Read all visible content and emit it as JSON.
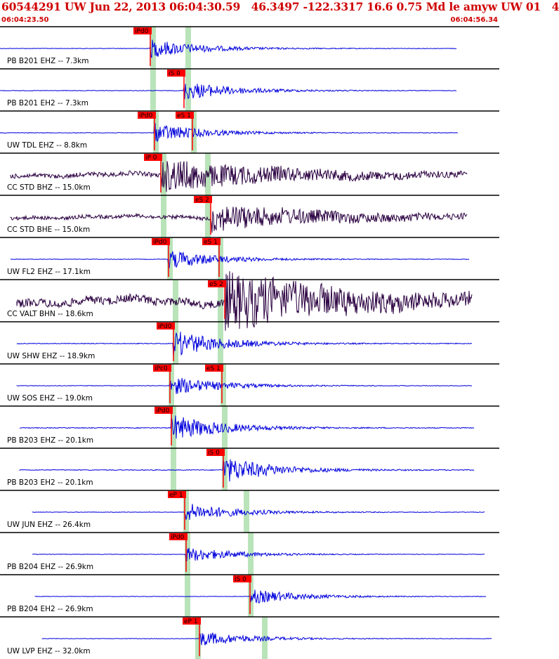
{
  "header": {
    "title": "60544291 UW Jun 22, 2013 06:04:30.59   46.3497 -122.3317 16.6 0.75 Md le amyw UW 01   4",
    "start_time": "06:04:23.50",
    "end_time": "06:04:56.34"
  },
  "colors": {
    "header_text": "#d00000",
    "trace_vertical": "#0000dd",
    "trace_horizontal": "#2a0040",
    "pick_flag": "#ff0000",
    "pick_band": "#b9e3b9",
    "grid": "#000000"
  },
  "traces": [
    {
      "label": "PB B201 EHZ -- 7.3km",
      "picks": [
        {
          "text": "iPd0"
        }
      ]
    },
    {
      "label": "PB B201 EH2 -- 7.3km",
      "picks": [
        {
          "text": "iS 0"
        }
      ]
    },
    {
      "label": "UW TDL EHZ -- 8.8km",
      "picks": [
        {
          "text": "iPd0"
        },
        {
          "text": "eS 1"
        }
      ]
    },
    {
      "label": "CC STD BHZ -- 15.0km",
      "picks": [
        {
          "text": "iP 0"
        }
      ]
    },
    {
      "label": "CC STD BHE -- 15.0km",
      "picks": [
        {
          "text": "eS 2"
        }
      ]
    },
    {
      "label": "UW FL2 EHZ -- 17.1km",
      "picks": [
        {
          "text": "iPd0"
        },
        {
          "text": "eS 1"
        }
      ]
    },
    {
      "label": "CC VALT BHN -- 18.6km",
      "picks": [
        {
          "text": "eS 2"
        }
      ]
    },
    {
      "label": "UW SHW EHZ -- 18.9km",
      "picks": [
        {
          "text": "iPd0"
        }
      ]
    },
    {
      "label": "UW SOS EHZ -- 19.0km",
      "picks": [
        {
          "text": "iPc0"
        },
        {
          "text": "eS 1"
        }
      ]
    },
    {
      "label": "PB B203 EHZ -- 20.1km",
      "picks": [
        {
          "text": "iPd0"
        }
      ]
    },
    {
      "label": "PB B203 EH2 -- 20.1km",
      "picks": [
        {
          "text": "iS 0"
        }
      ]
    },
    {
      "label": "UW JUN EHZ -- 26.4km",
      "picks": [
        {
          "text": "eP 1"
        }
      ]
    },
    {
      "label": "PB B204 EHZ -- 26.9km",
      "picks": [
        {
          "text": "iPd0"
        }
      ]
    },
    {
      "label": "PB B204 EH2 -- 26.9km",
      "picks": [
        {
          "text": "iS 0"
        }
      ]
    },
    {
      "label": "UW LVP EHZ -- 32.0km",
      "picks": [
        {
          "text": "eP 1"
        }
      ]
    }
  ]
}
